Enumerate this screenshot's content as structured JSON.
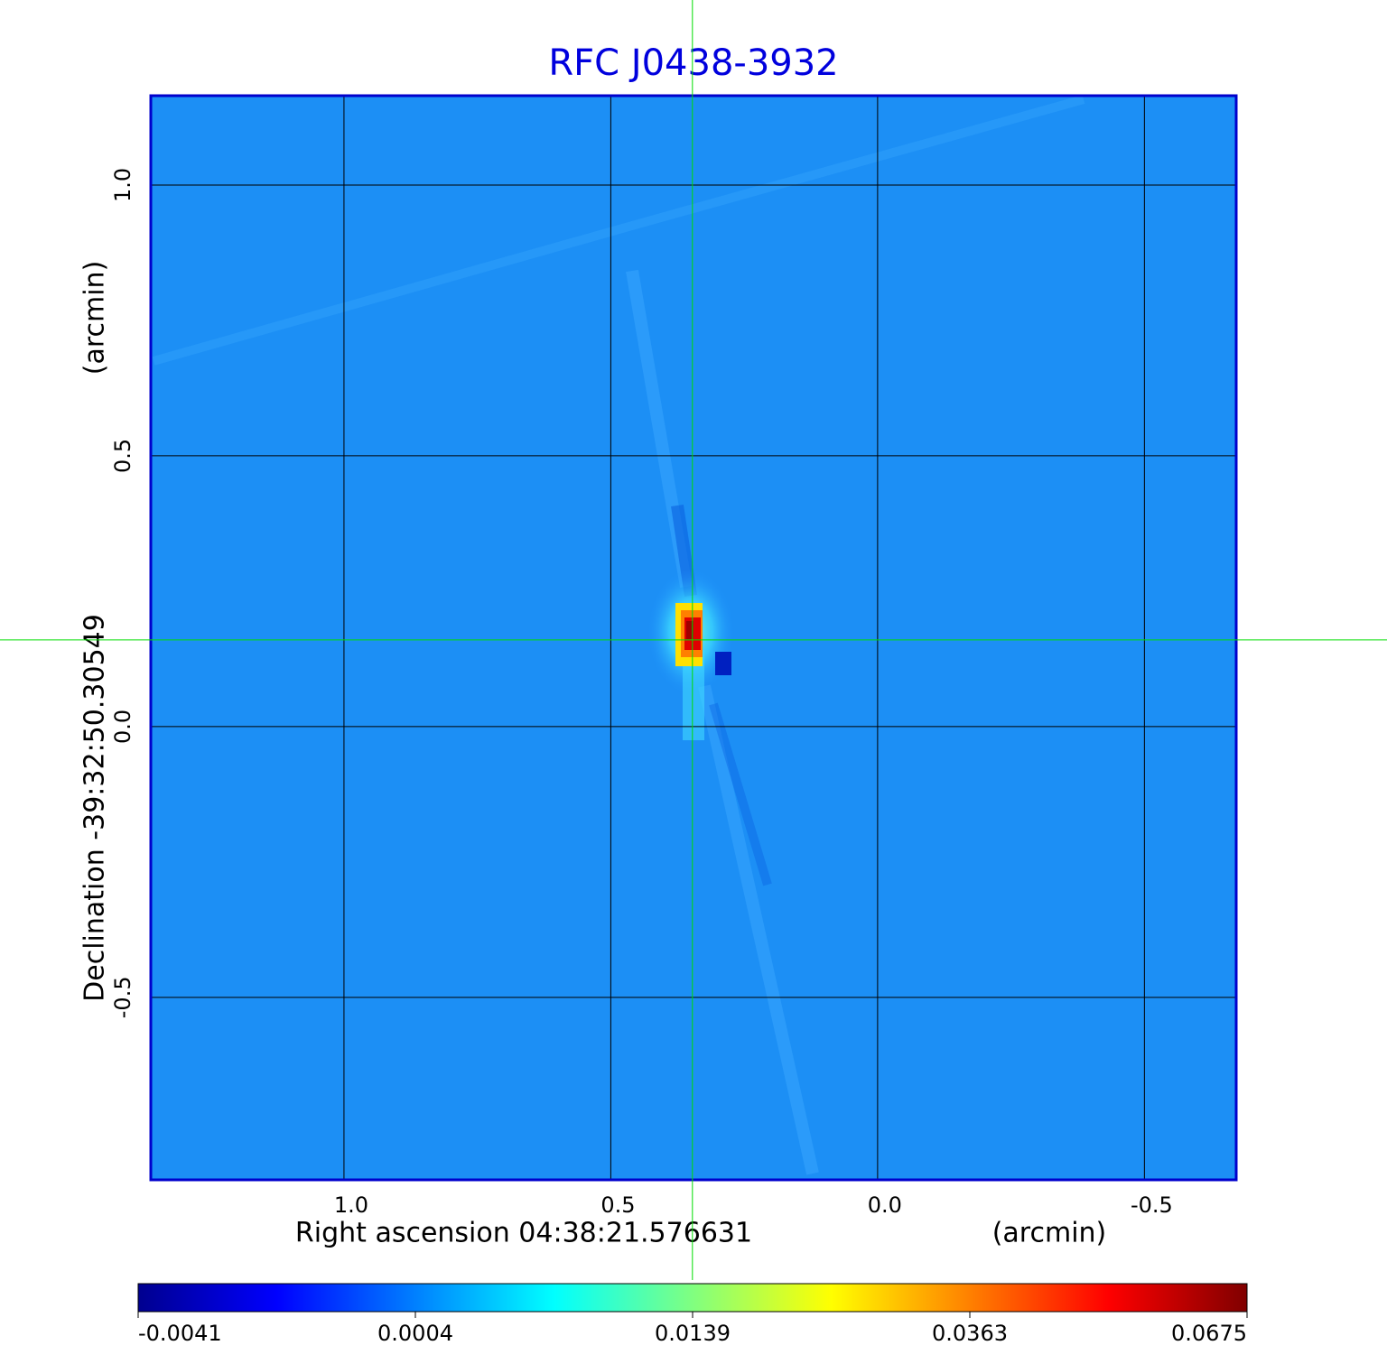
{
  "chart_data": {
    "type": "image",
    "title": "RFC J0438-3932",
    "xlabel": "Right ascension  04:38:21.576631",
    "xunit": "(arcmin)",
    "ylabel": "Declination  -39:32:50.30549",
    "yunit": "(arcmin)",
    "xlim": [
      1.362,
      -0.672
    ],
    "ylim": [
      -0.837,
      1.165
    ],
    "xticks": [
      {
        "value": 1.0,
        "label": "1.0"
      },
      0.5,
      {
        "value": 0.0,
        "label": "0.0"
      },
      -0.5
    ],
    "yticks": [
      {
        "value": 1.0,
        "label": "1.0"
      },
      0.5,
      {
        "value": 0.0,
        "label": "0.0"
      },
      -0.5
    ],
    "grid": true,
    "crosshair": {
      "x": 0.347,
      "y": 0.16
    },
    "colorbar": {
      "colormap": "jet",
      "ticks": [
        -0.0041,
        0.0004,
        0.0139,
        0.0363,
        0.0675
      ]
    }
  }
}
